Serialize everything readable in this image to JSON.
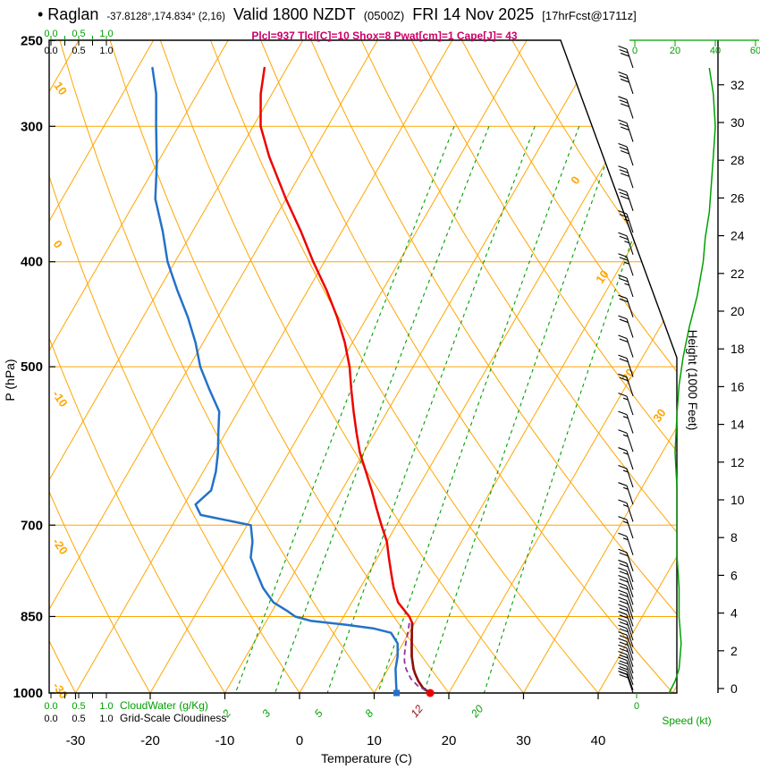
{
  "header": {
    "station_title": "• Raglan",
    "coords": "-37.8128°,174.834° (2,16)",
    "valid": "Valid 1800 NZDT",
    "valid_z": "(0500Z)",
    "date": "FRI 14 Nov 2025",
    "fcst_tag": "[17hrFcst@1711z]",
    "params": "Plcl=937 Tlcl[C]=10 Shox=8 Pwat[cm]=1 Cape[J]= 43"
  },
  "axes": {
    "pressure": {
      "label": "P (hPa)",
      "ticks": [
        250,
        300,
        400,
        500,
        700,
        850,
        1000
      ]
    },
    "temperature": {
      "label": "Temperature (C)",
      "ticks": [
        -30,
        -20,
        -10,
        0,
        10,
        20,
        30,
        40
      ]
    },
    "height": {
      "label": "Height (1000 Feet)",
      "ticks": [
        0,
        2,
        4,
        6,
        8,
        10,
        12,
        14,
        16,
        18,
        20,
        22,
        24,
        26,
        28,
        30,
        32
      ]
    },
    "speed": {
      "label": "Speed (kt)",
      "ticks": [
        0,
        20,
        40,
        60
      ]
    },
    "cloudwater": {
      "label": "CloudWater (g/Kg)",
      "ticks": [
        "0.0",
        "0.5",
        "1.0"
      ]
    },
    "cloudiness": {
      "label": "Grid-Scale Cloudiness",
      "ticks": [
        "0.0",
        "0.5",
        "1.0"
      ]
    }
  },
  "colors": {
    "grid": "#FFA500",
    "green": "#00A000",
    "red": "#EE0000",
    "maroon": "#8B1212",
    "blue": "#2472C8",
    "purple": "#9030A8",
    "magenta": "#CC0066",
    "black": "#000000"
  },
  "chart_data": {
    "type": "line",
    "chart_kind": "skew-t log-p atmospheric sounding",
    "title": "Raglan sounding valid 1800 NZDT FRI 14 Nov 2025",
    "profile_units": {
      "pressure": "hPa",
      "temperature": "C",
      "wind": "kt"
    },
    "pressure_gridlines": [
      300,
      400,
      500,
      700,
      850
    ],
    "isotherm_labels": [
      0,
      10,
      20,
      30
    ],
    "adiabat_labels": [
      10,
      0,
      -10,
      -20,
      -30
    ],
    "mixing_ratio_values": [
      2,
      3,
      5,
      8,
      12,
      20
    ],
    "mixing_label_highlight": 12,
    "surface": {
      "t": 17.5,
      "td": 13
    },
    "temperature_profile": [
      [
        265,
        -53
      ],
      [
        280,
        -51.5
      ],
      [
        300,
        -49
      ],
      [
        320,
        -45.5
      ],
      [
        350,
        -40
      ],
      [
        375,
        -35.5
      ],
      [
        400,
        -31.5
      ],
      [
        425,
        -27.5
      ],
      [
        450,
        -24
      ],
      [
        475,
        -21
      ],
      [
        500,
        -18.5
      ],
      [
        525,
        -16.5
      ],
      [
        550,
        -14.5
      ],
      [
        575,
        -12.5
      ],
      [
        600,
        -10.5
      ],
      [
        625,
        -8.2
      ],
      [
        650,
        -6
      ],
      [
        675,
        -4
      ],
      [
        700,
        -2
      ],
      [
        725,
        0
      ],
      [
        750,
        1.5
      ],
      [
        775,
        3
      ],
      [
        800,
        4.5
      ],
      [
        825,
        6.2
      ],
      [
        850,
        8.8
      ],
      [
        862,
        9.7
      ],
      [
        875,
        10.2
      ],
      [
        900,
        11.2
      ],
      [
        925,
        12.2
      ],
      [
        950,
        13.4
      ],
      [
        960,
        14
      ],
      [
        975,
        15
      ],
      [
        990,
        16.2
      ],
      [
        1000,
        17.5
      ]
    ],
    "dewpoint_profile": [
      [
        265,
        -68
      ],
      [
        280,
        -65.5
      ],
      [
        300,
        -63
      ],
      [
        325,
        -60
      ],
      [
        350,
        -57.5
      ],
      [
        375,
        -54
      ],
      [
        400,
        -51
      ],
      [
        425,
        -47.5
      ],
      [
        450,
        -44
      ],
      [
        475,
        -41
      ],
      [
        500,
        -38.5
      ],
      [
        525,
        -35.5
      ],
      [
        550,
        -32.5
      ],
      [
        575,
        -31
      ],
      [
        600,
        -29.5
      ],
      [
        625,
        -28.3
      ],
      [
        650,
        -27.5
      ],
      [
        670,
        -28.5
      ],
      [
        685,
        -27
      ],
      [
        695,
        -22
      ],
      [
        700,
        -19.5
      ],
      [
        725,
        -18
      ],
      [
        750,
        -17
      ],
      [
        775,
        -15
      ],
      [
        800,
        -13
      ],
      [
        825,
        -10.5
      ],
      [
        840,
        -8
      ],
      [
        850,
        -6.5
      ],
      [
        858,
        -4
      ],
      [
        865,
        1
      ],
      [
        872,
        5
      ],
      [
        880,
        7.6
      ],
      [
        900,
        9.3
      ],
      [
        925,
        10.3
      ],
      [
        950,
        11
      ],
      [
        975,
        12
      ],
      [
        1000,
        13
      ]
    ],
    "parcel_profile": [
      [
        862,
        9.3
      ],
      [
        875,
        9.7
      ],
      [
        900,
        10.4
      ],
      [
        925,
        11.2
      ],
      [
        937,
        11.7
      ],
      [
        950,
        12.4
      ],
      [
        970,
        13.8
      ],
      [
        985,
        15.3
      ],
      [
        1000,
        17.5
      ]
    ],
    "wind_barbs": [
      [
        265,
        30
      ],
      [
        280,
        31
      ],
      [
        295,
        30
      ],
      [
        310,
        29
      ],
      [
        326,
        28
      ],
      [
        342,
        28
      ],
      [
        359,
        28
      ],
      [
        376,
        27
      ],
      [
        394,
        26
      ],
      [
        412,
        25
      ],
      [
        431,
        24
      ],
      [
        450,
        22
      ],
      [
        470,
        21
      ],
      [
        490,
        20
      ],
      [
        511,
        19
      ],
      [
        532,
        18
      ],
      [
        554,
        17
      ],
      [
        576,
        16
      ],
      [
        599,
        15
      ],
      [
        622,
        15
      ],
      [
        646,
        15
      ],
      [
        670,
        15
      ],
      [
        695,
        15
      ],
      [
        720,
        15
      ],
      [
        746,
        16
      ],
      [
        772,
        18
      ],
      [
        790,
        19
      ],
      [
        803,
        20
      ],
      [
        816,
        20
      ],
      [
        829,
        21
      ],
      [
        842,
        21
      ],
      [
        855,
        22
      ],
      [
        868,
        22
      ],
      [
        881,
        22
      ],
      [
        894,
        22
      ],
      [
        907,
        22
      ],
      [
        920,
        22
      ],
      [
        933,
        22
      ],
      [
        946,
        22
      ],
      [
        959,
        22
      ],
      [
        971,
        21
      ],
      [
        983,
        20
      ],
      [
        994,
        19
      ],
      [
        1000,
        18
      ]
    ],
    "speed_profile": [
      [
        265,
        37
      ],
      [
        280,
        39
      ],
      [
        300,
        40
      ],
      [
        320,
        39
      ],
      [
        340,
        38
      ],
      [
        360,
        37
      ],
      [
        380,
        35
      ],
      [
        400,
        34
      ],
      [
        430,
        31
      ],
      [
        460,
        27
      ],
      [
        490,
        24
      ],
      [
        520,
        22
      ],
      [
        550,
        21
      ],
      [
        600,
        20
      ],
      [
        650,
        21
      ],
      [
        700,
        21
      ],
      [
        750,
        21
      ],
      [
        800,
        22
      ],
      [
        850,
        22
      ],
      [
        900,
        23
      ],
      [
        950,
        22
      ],
      [
        975,
        20
      ],
      [
        1000,
        17
      ]
    ]
  }
}
